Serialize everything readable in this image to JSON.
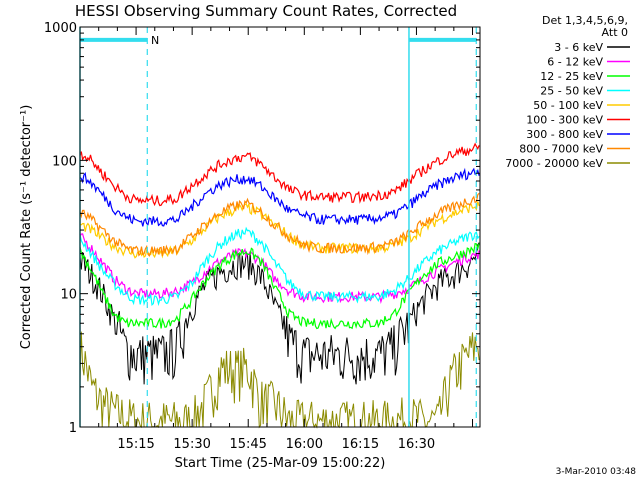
{
  "chart_data": {
    "type": "line",
    "title": "HESSI Observing Summary Count Rates, Corrected",
    "xlabel": "Start Time (25-Mar-09 15:00:22)",
    "ylabel": "Corrected Count Rate (s⁻¹ detector⁻¹)",
    "y_scale": "log",
    "ylim": [
      1,
      1000
    ],
    "xlim": [
      0,
      107
    ],
    "y_ticks": [
      {
        "v": 1,
        "label": "1"
      },
      {
        "v": 10,
        "label": "10"
      },
      {
        "v": 100,
        "label": "100"
      },
      {
        "v": 1000,
        "label": "1000"
      }
    ],
    "x_ticks": [
      {
        "v": 15,
        "label": "15:15"
      },
      {
        "v": 30,
        "label": "15:30"
      },
      {
        "v": 45,
        "label": "15:45"
      },
      {
        "v": 60,
        "label": "16:00"
      },
      {
        "v": 75,
        "label": "16:15"
      },
      {
        "v": 90,
        "label": "16:30"
      }
    ],
    "legend_header": [
      "Det 1,3,4,5,6,9,",
      "Att 0"
    ],
    "legend_position": "right",
    "x": [
      0,
      3,
      6,
      9,
      12,
      15,
      18,
      22,
      26,
      30,
      34,
      38,
      42,
      45,
      48,
      52,
      56,
      60,
      64,
      68,
      72,
      76,
      80,
      84,
      88,
      92,
      96,
      100,
      104,
      107
    ],
    "series": [
      {
        "name": "3 - 6 keV",
        "color": "#000000",
        "values": [
          18,
          14,
          10,
          6.5,
          4,
          3.5,
          3.5,
          3.5,
          4,
          8,
          12,
          15,
          17,
          17,
          14,
          8,
          4.5,
          3.5,
          3.5,
          3.5,
          3.5,
          3.5,
          3.5,
          4,
          6,
          9,
          12,
          14,
          17,
          20
        ]
      },
      {
        "name": "6 - 12 keV",
        "color": "#ff00ff",
        "values": [
          27,
          22,
          17,
          13,
          11,
          10,
          10,
          10,
          10.5,
          12,
          15,
          18,
          20,
          20,
          18,
          13,
          10.5,
          9.5,
          9.5,
          9.5,
          9.5,
          9.5,
          9.5,
          10,
          11,
          13,
          15,
          17,
          19,
          20
        ]
      },
      {
        "name": "12 - 25 keV",
        "color": "#00ff00",
        "values": [
          21,
          15,
          10,
          7,
          6,
          6,
          6,
          6,
          6.5,
          9,
          13,
          17,
          20,
          21,
          18,
          11,
          7,
          6,
          6,
          6,
          6,
          6,
          6,
          7,
          10,
          14,
          17,
          19,
          21,
          23
        ]
      },
      {
        "name": "25 - 50 keV",
        "color": "#00ffff",
        "values": [
          26,
          20,
          15,
          12,
          10,
          9,
          9,
          9,
          9.5,
          12,
          18,
          24,
          28,
          29,
          25,
          17,
          12,
          10,
          9.5,
          9.5,
          9.5,
          9.5,
          9.5,
          10.5,
          13,
          17,
          21,
          24,
          27,
          29
        ]
      },
      {
        "name": "50 - 100 keV",
        "color": "#ffcc00",
        "values": [
          33,
          30,
          26,
          23,
          21,
          20,
          20,
          20,
          21,
          25,
          32,
          39,
          43,
          44,
          40,
          33,
          27,
          23,
          22,
          22,
          22,
          22,
          22,
          23,
          26,
          31,
          36,
          40,
          44,
          46
        ]
      },
      {
        "name": "100 - 300 keV",
        "color": "#ff0000",
        "values": [
          115,
          100,
          80,
          65,
          55,
          50,
          50,
          50,
          52,
          65,
          80,
          95,
          105,
          107,
          95,
          75,
          60,
          55,
          53,
          53,
          53,
          53,
          55,
          58,
          70,
          85,
          100,
          112,
          120,
          125
        ]
      },
      {
        "name": "300 - 800 keV",
        "color": "#0000ff",
        "values": [
          78,
          68,
          55,
          44,
          38,
          35,
          35,
          35,
          36,
          45,
          57,
          67,
          72,
          73,
          65,
          52,
          42,
          38,
          36,
          36,
          36,
          36,
          37,
          39,
          46,
          56,
          66,
          74,
          80,
          83
        ]
      },
      {
        "name": "800 - 7000 keV",
        "color": "#ff8800",
        "values": [
          41,
          36,
          30,
          25,
          22,
          21,
          21,
          21,
          22,
          27,
          34,
          41,
          46,
          47,
          42,
          33,
          27,
          23,
          22,
          22,
          22,
          22,
          22.5,
          24,
          28,
          34,
          40,
          45,
          50,
          53
        ]
      },
      {
        "name": "7000 - 20000 keV",
        "color": "#8b8b00",
        "values": [
          4,
          2,
          1.5,
          1.3,
          1.2,
          1.1,
          1.1,
          1.1,
          1.1,
          1.1,
          1.6,
          2.8,
          2.7,
          2.8,
          1.6,
          1.5,
          1.1,
          1.1,
          1.1,
          1.1,
          1.1,
          1.1,
          1.1,
          1.1,
          1.2,
          1.1,
          1.1,
          2.5,
          3.5,
          4.5
        ]
      }
    ],
    "markers": {
      "color": "#33ddee",
      "solid_lines": [
        0,
        88
      ],
      "dashed_lines": [
        18,
        106
      ],
      "bars": [
        [
          0,
          18
        ],
        [
          88,
          106
        ]
      ],
      "bar_y": 800,
      "bar_label": {
        "text": "N",
        "x": 19
      }
    },
    "footer": "3-Mar-2010 03:48"
  }
}
